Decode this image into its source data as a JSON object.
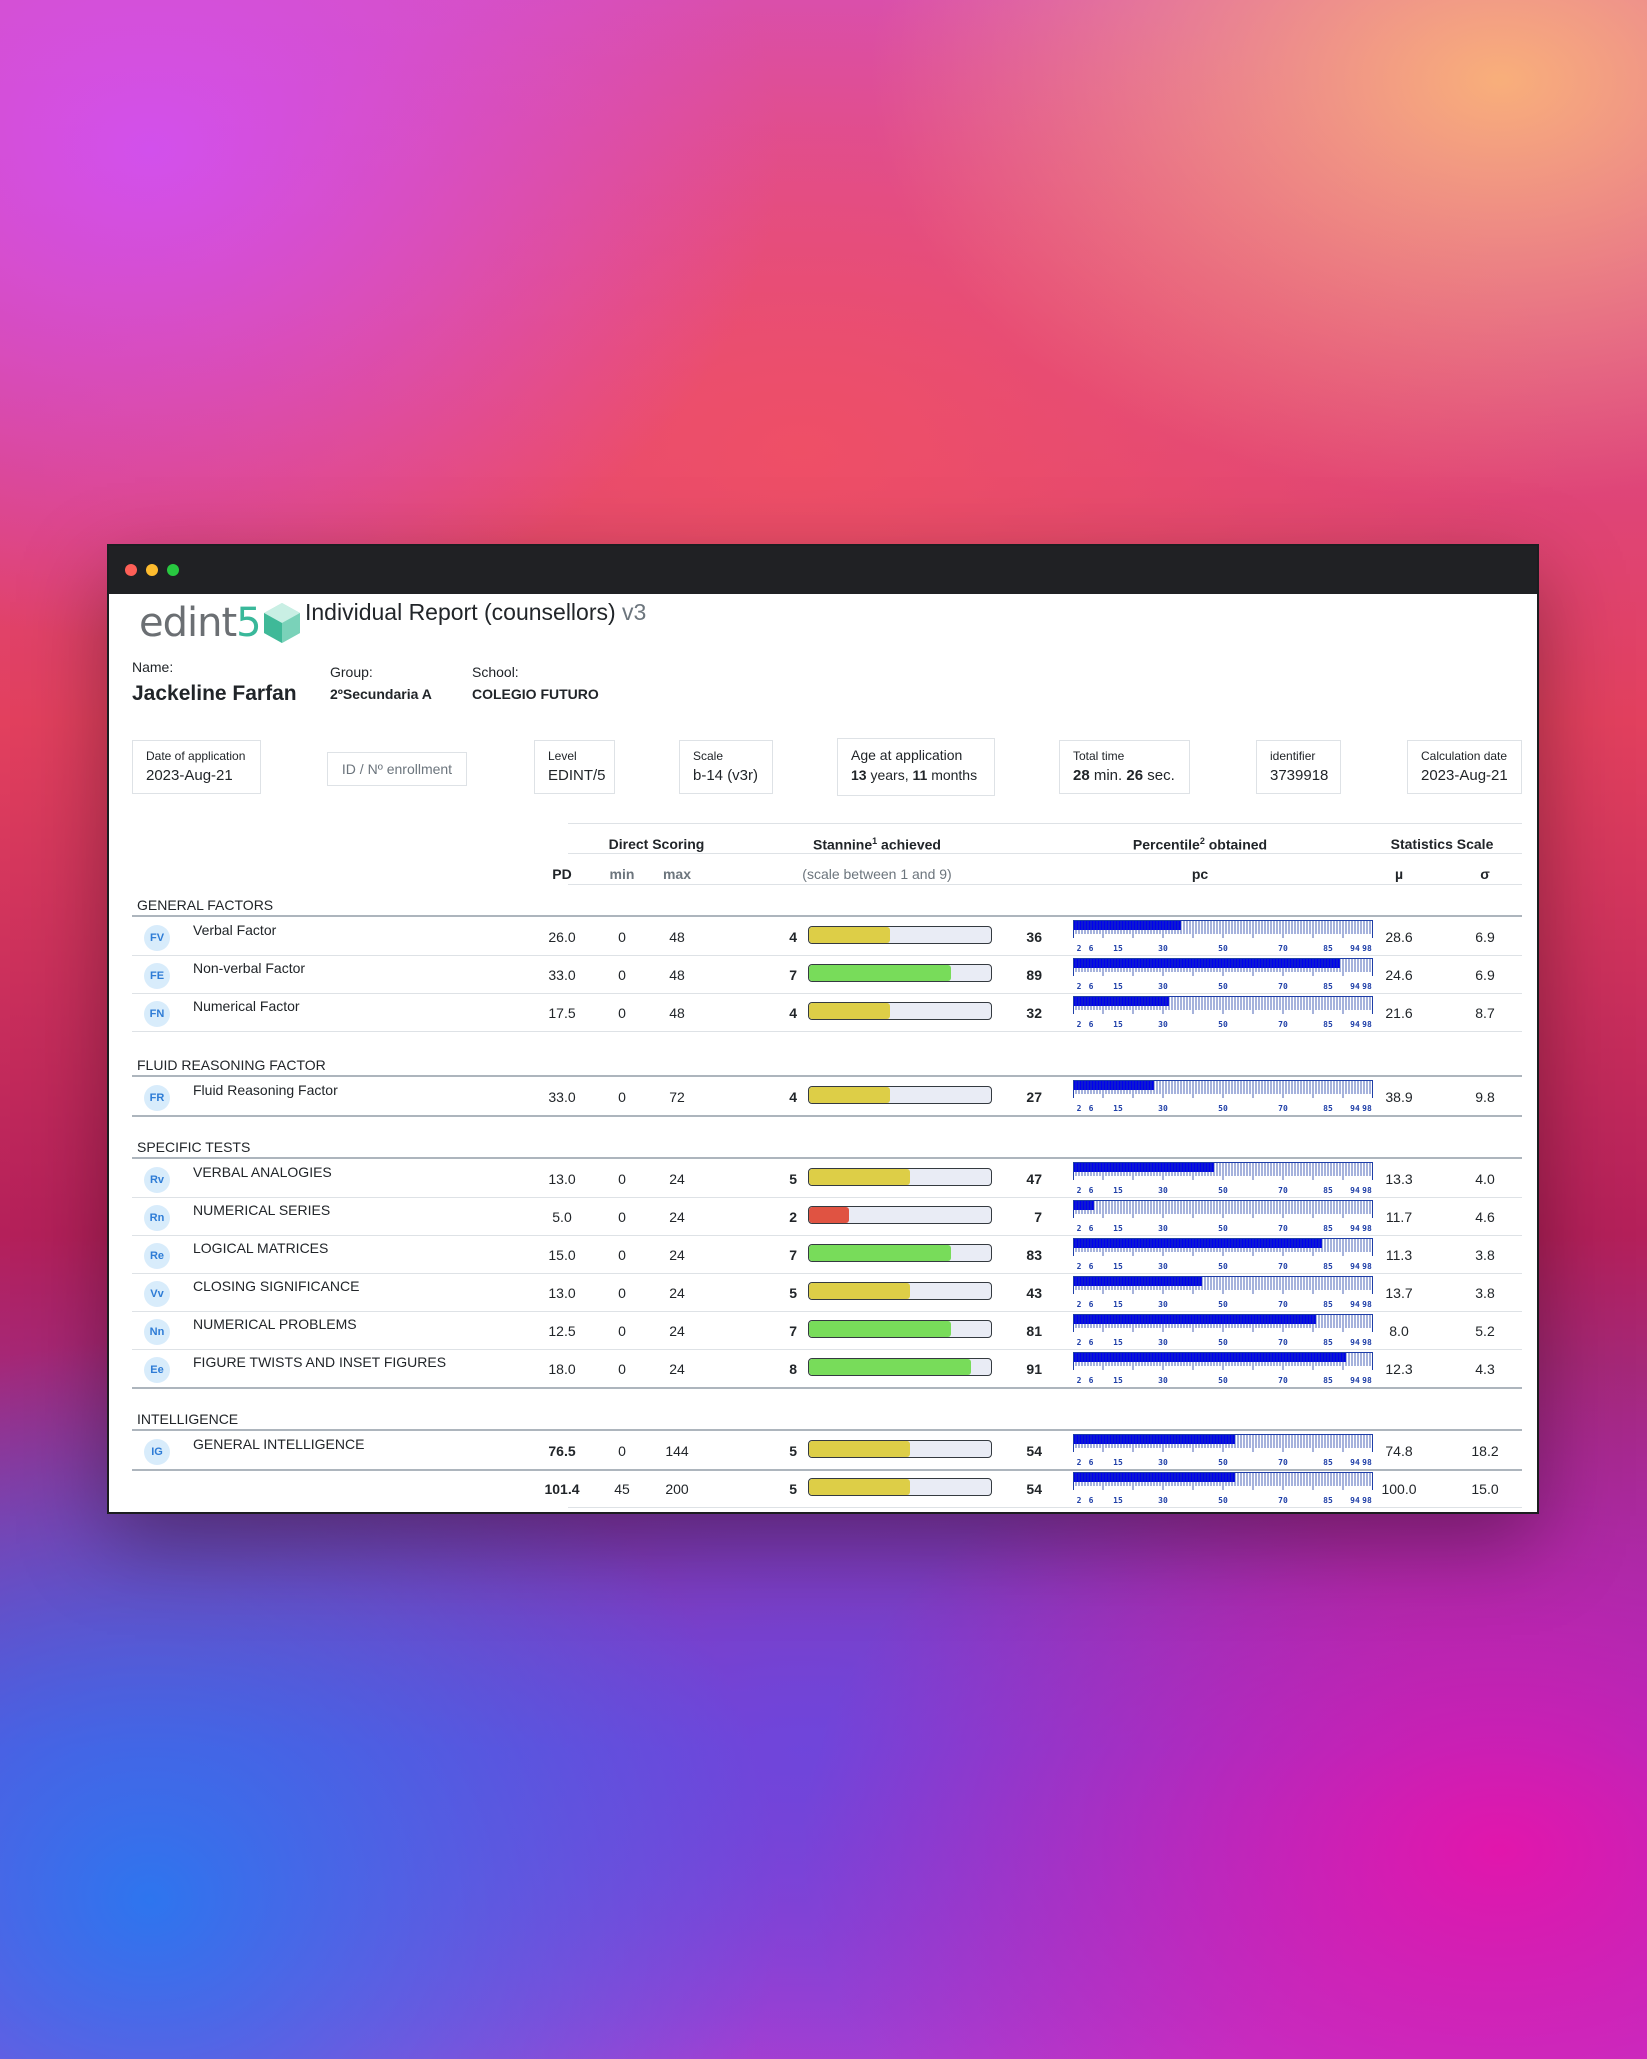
{
  "window": {
    "title": "Individual Report (counsellors)",
    "version": "v3"
  },
  "logo": {
    "text_a": "edint",
    "text_b": "5"
  },
  "student": {
    "name_label": "Name:",
    "name": "Jackeline Farfan",
    "group_label": "Group:",
    "group": "2ºSecundaria A",
    "school_label": "School:",
    "school": "COLEGIO FUTURO"
  },
  "info": {
    "date_label": "Date of application",
    "date": "2023-Aug-21",
    "enrollment_placeholder": "ID / Nº enrollment",
    "level_label": "Level",
    "level": "EDINT/5",
    "scale_label": "Scale",
    "scale": "b-14 (v3r)",
    "age_label": "Age at application",
    "age_years": "13",
    "age_years_unit": "years,",
    "age_months": "11",
    "age_months_unit": "months",
    "time_label": "Total time",
    "time_min": "28",
    "time_min_unit": "min.",
    "time_sec": "26",
    "time_sec_unit": "sec.",
    "identifier_label": "identifier",
    "identifier": "3739918",
    "calc_label": "Calculation date",
    "calc": "2023-Aug-21"
  },
  "table": {
    "headers": {
      "direct": "Direct Scoring",
      "stannine": "Stannine",
      "stannine_sup": "1",
      "stannine_suffix": " achieved",
      "percentile": "Percentile",
      "percentile_sup": "2",
      "percentile_suffix": " obtained",
      "stats": "Statistics Scale"
    },
    "subheaders": {
      "pd": "PD",
      "min": "min",
      "max": "max",
      "stannine_note": "(scale between 1 and 9)",
      "pc": "pc",
      "mu": "µ",
      "sigma": "σ"
    },
    "pc_ticks": [
      "2",
      "6",
      "15",
      "30",
      "50",
      "70",
      "85",
      "94",
      "98"
    ],
    "sections": [
      {
        "title": "GENERAL FACTORS",
        "rows": [
          {
            "code": "FV",
            "name": "Verbal Factor",
            "pd": "26.0",
            "min": "0",
            "max": "48",
            "stannine": 4,
            "pc": 36,
            "mu": "28.6",
            "sigma": "6.9"
          },
          {
            "code": "FE",
            "name": "Non-verbal Factor",
            "pd": "33.0",
            "min": "0",
            "max": "48",
            "stannine": 7,
            "pc": 89,
            "mu": "24.6",
            "sigma": "6.9"
          },
          {
            "code": "FN",
            "name": "Numerical Factor",
            "pd": "17.5",
            "min": "0",
            "max": "48",
            "stannine": 4,
            "pc": 32,
            "mu": "21.6",
            "sigma": "8.7"
          }
        ]
      },
      {
        "title": "FLUID REASONING FACTOR",
        "rows": [
          {
            "code": "FR",
            "name": "Fluid Reasoning Factor",
            "pd": "33.0",
            "min": "0",
            "max": "72",
            "stannine": 4,
            "pc": 27,
            "mu": "38.9",
            "sigma": "9.8"
          }
        ]
      },
      {
        "title": "SPECIFIC TESTS",
        "rows": [
          {
            "code": "Rv",
            "name": "VERBAL ANALOGIES",
            "pd": "13.0",
            "min": "0",
            "max": "24",
            "stannine": 5,
            "pc": 47,
            "mu": "13.3",
            "sigma": "4.0"
          },
          {
            "code": "Rn",
            "name": "NUMERICAL SERIES",
            "pd": "5.0",
            "min": "0",
            "max": "24",
            "stannine": 2,
            "pc": 7,
            "mu": "11.7",
            "sigma": "4.6"
          },
          {
            "code": "Re",
            "name": "LOGICAL MATRICES",
            "pd": "15.0",
            "min": "0",
            "max": "24",
            "stannine": 7,
            "pc": 83,
            "mu": "11.3",
            "sigma": "3.8"
          },
          {
            "code": "Vv",
            "name": "CLOSING SIGNIFICANCE",
            "pd": "13.0",
            "min": "0",
            "max": "24",
            "stannine": 5,
            "pc": 43,
            "mu": "13.7",
            "sigma": "3.8"
          },
          {
            "code": "Nn",
            "name": "NUMERICAL PROBLEMS",
            "pd": "12.5",
            "min": "0",
            "max": "24",
            "stannine": 7,
            "pc": 81,
            "mu": "8.0",
            "sigma": "5.2"
          },
          {
            "code": "Ee",
            "name": "FIGURE TWISTS AND INSET FIGURES",
            "pd": "18.0",
            "min": "0",
            "max": "24",
            "stannine": 8,
            "pc": 91,
            "mu": "12.3",
            "sigma": "4.3"
          }
        ]
      },
      {
        "title": "INTELLIGENCE",
        "rows": [
          {
            "code": "IG",
            "name": "GENERAL INTELLIGENCE",
            "pd": "76.5",
            "min": "0",
            "max": "144",
            "stannine": 5,
            "pc": 54,
            "mu": "74.8",
            "sigma": "18.2",
            "bold_pd": true
          }
        ]
      }
    ],
    "total_row": {
      "pd": "101.4",
      "min": "45",
      "max": "200",
      "stannine": 5,
      "pc": 54,
      "mu": "100.0",
      "sigma": "15.0"
    }
  },
  "colors": {
    "stannine_low": "#e05342",
    "stannine_mid": "#ddce47",
    "stannine_high": "#78dc5a",
    "percentile_fill": "#0000ee",
    "percentile_tick": "#1f3fa8"
  }
}
